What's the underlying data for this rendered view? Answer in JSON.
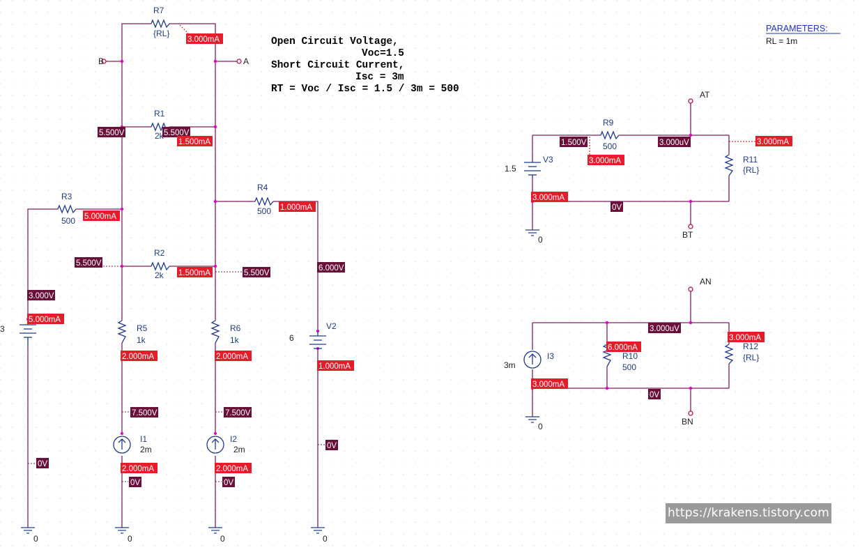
{
  "note": {
    "lines": [
      "Open Circuit Voltage,",
      "Voc=1.5",
      "Short Circuit Current,",
      "Isc = 3m",
      "RT = Voc / Isc = 1.5 / 3m = 500"
    ]
  },
  "parameters": {
    "title": "PARAMETERS:",
    "entry": "RL = 1m"
  },
  "watermark": "https://krakens.tistory.com",
  "components": {
    "R7": {
      "name": "R7",
      "value": "{RL}"
    },
    "R1": {
      "name": "R1",
      "value": "2k"
    },
    "R2": {
      "name": "R2",
      "value": "2k"
    },
    "R3": {
      "name": "R3",
      "value": "500"
    },
    "R4": {
      "name": "R4",
      "value": "500"
    },
    "R5": {
      "name": "R5",
      "value": "1k"
    },
    "R6": {
      "name": "R6",
      "value": "1k"
    },
    "I1": {
      "name": "I1",
      "value": "2m"
    },
    "I2": {
      "name": "I2",
      "value": "2m"
    },
    "V1": {
      "name": "",
      "value": "3"
    },
    "V2": {
      "name": "V2",
      "value": "6"
    },
    "V3": {
      "name": "V3",
      "value": "1.5"
    },
    "R9": {
      "name": "R9",
      "value": "500"
    },
    "R11": {
      "name": "R11",
      "value": "{RL}"
    },
    "I3": {
      "name": "I3",
      "value": "3m"
    },
    "R10": {
      "name": "R10",
      "value": "500"
    },
    "R12": {
      "name": "R12",
      "value": "{RL}"
    }
  },
  "terminals": {
    "A": "A",
    "B": "B",
    "AT": "AT",
    "BT": "BT",
    "AN": "AN",
    "BN": "BN"
  },
  "ground_label": "0",
  "markers": {
    "r7_current": "3.000mA",
    "n_left_v": "5.500V",
    "n_right_v": "5.500V",
    "r1_current": "1.500mA",
    "r3_current": "5.000mA",
    "r4_current": "1.000mA",
    "n_r2_left_v": "5.500V",
    "r2_current": "1.500mA",
    "n_r2_right_v": "5.500V",
    "v2_top_v": "6.000V",
    "v1_top_v": "3.000V",
    "v1_current": "5.000mA",
    "r5_current": "2.000mA",
    "r6_current": "2.000mA",
    "v2_current": "1.000mA",
    "i1_top_v": "7.500V",
    "i2_top_v": "7.500V",
    "v1_bottom_v": "0V",
    "v2_bottom_v": "0V",
    "i1_current": "2.000mA",
    "i2_current": "2.000mA",
    "i1_bottom_v": "0V",
    "i2_bottom_v": "0V",
    "th_left_v": "1.500V",
    "th_top_v": "3.000uV",
    "th_r11_current": "3.000mA",
    "th_r9_current": "3.000mA",
    "th_v3_current": "3.000mA",
    "th_bottom_v": "0V",
    "no_top_v": "3.000uV",
    "no_r10_current": "6.000nA",
    "no_r12_current": "3.000mA",
    "no_i3_current": "3.000mA",
    "no_bottom_v": "0V"
  }
}
